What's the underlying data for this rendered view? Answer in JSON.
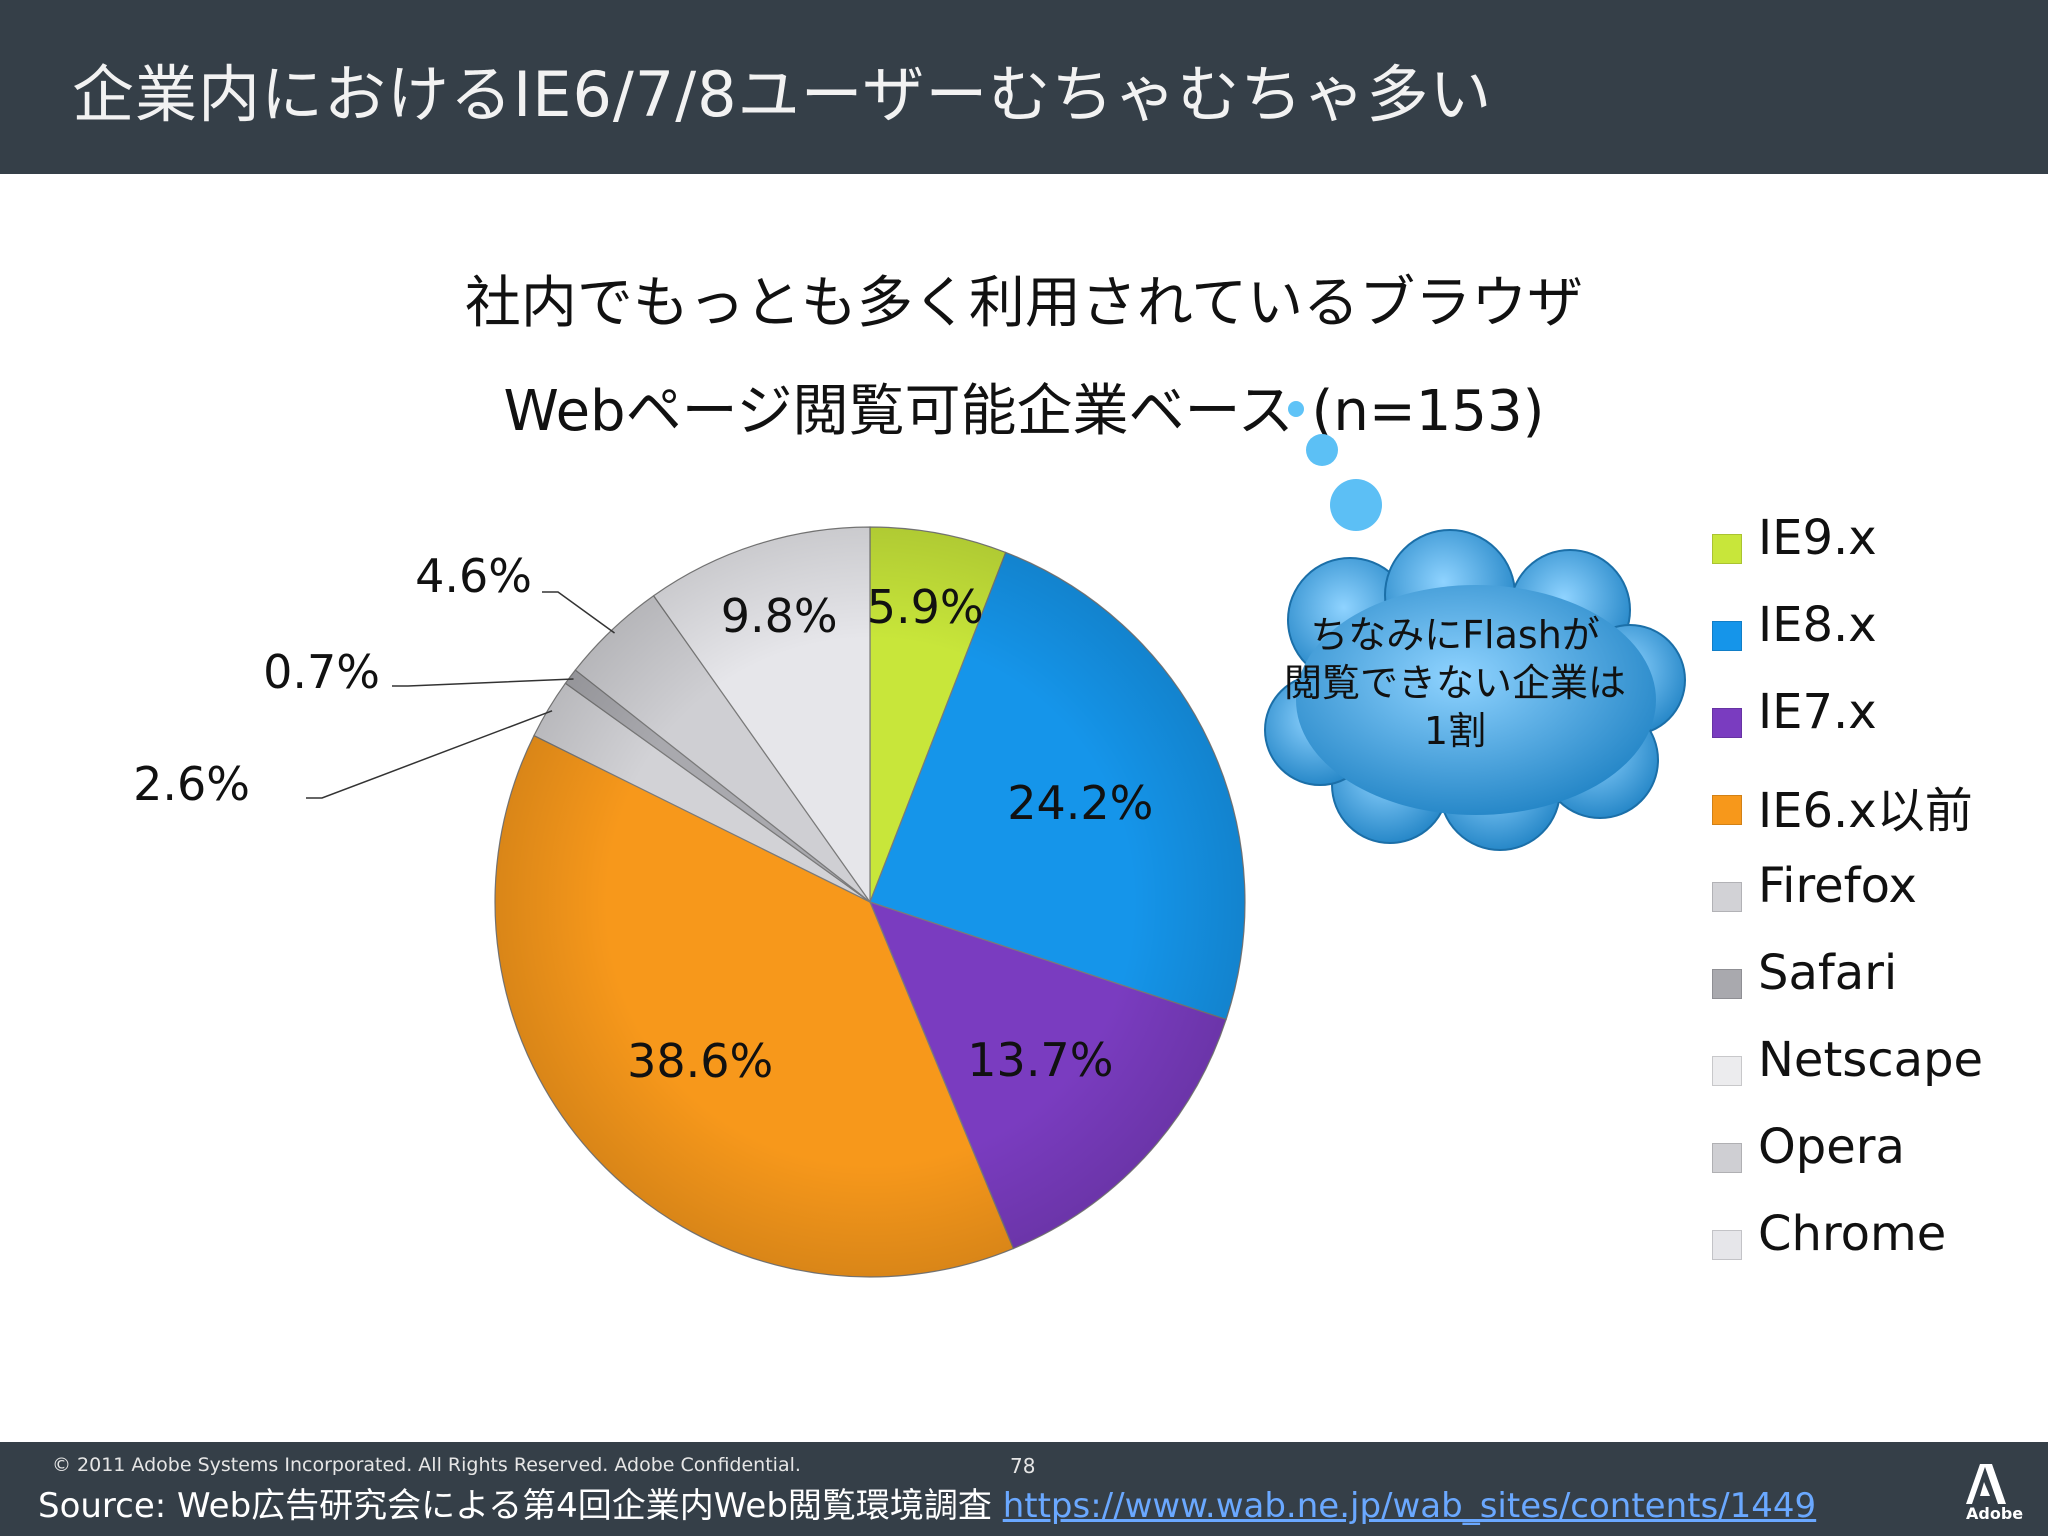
{
  "header": {
    "title": "企業内におけるIE6/7/8ユーザーむちゃむちゃ多い"
  },
  "chart_data": {
    "type": "pie",
    "title": "社内でもっとも多く利用されているブラウザ",
    "subtitle": "Webページ閲覧可能企業ベース (n=153)",
    "series": [
      {
        "name": "IE9.x",
        "value": 5.9,
        "label": "5.9%",
        "color": "#c8e63a"
      },
      {
        "name": "IE8.x",
        "value": 24.2,
        "label": "24.2%",
        "color": "#1595ea"
      },
      {
        "name": "IE7.x",
        "value": 13.7,
        "label": "13.7%",
        "color": "#7a3cc0"
      },
      {
        "name": "IE6.x以前",
        "value": 38.6,
        "label": "38.6%",
        "color": "#f7981b"
      },
      {
        "name": "Firefox",
        "value": 2.6,
        "label": "2.6%",
        "color": "#d2d2d6"
      },
      {
        "name": "Safari",
        "value": 0.7,
        "label": "0.7%",
        "color": "#a9a9ae"
      },
      {
        "name": "Netscape",
        "value": 0,
        "label": "",
        "color": "#ececee"
      },
      {
        "name": "Opera",
        "value": 4.6,
        "label": "4.6%",
        "color": "#cfcfd3"
      },
      {
        "name": "Chrome",
        "value": 9.8,
        "label": "9.8%",
        "color": "#e6e6ea"
      }
    ]
  },
  "callout": {
    "lines": [
      "ちなみにFlashが",
      "閲覧できない企業は",
      "1割"
    ],
    "color": "#2a8fd0"
  },
  "footer": {
    "copyright": "© 2011 Adobe Systems Incorporated.  All Rights Reserved.  Adobe Confidential.",
    "page": "78",
    "source_prefix": "Source: Web広告研究会による第4回企業内Web閲覧環境調査 ",
    "source_link": "https://www.wab.ne.jp/wab_sites/contents/1449",
    "logo_text": "Adobe"
  }
}
